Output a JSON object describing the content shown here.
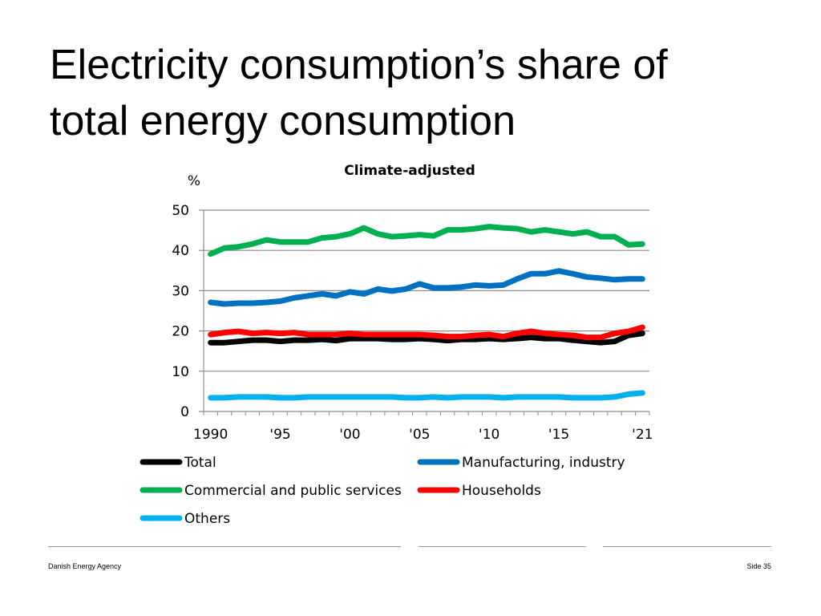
{
  "slide": {
    "title_line1": "Electricity consumption’s share of",
    "title_line2": "total energy consumption",
    "footer_left": "Danish Energy Agency",
    "footer_right": "Side 35"
  },
  "chart_data": {
    "type": "line",
    "title": "Climate-adjusted",
    "ylabel": "%",
    "xlabel": "",
    "ylim": [
      0,
      50
    ],
    "xlim": [
      1989.5,
      2021.5
    ],
    "yticks": [
      0,
      10,
      20,
      30,
      40,
      50
    ],
    "xticks": [
      {
        "value": 1990,
        "label": "1990"
      },
      {
        "value": 1995,
        "label": "'95"
      },
      {
        "value": 2000,
        "label": "'00"
      },
      {
        "value": 2005,
        "label": "'05"
      },
      {
        "value": 2010,
        "label": "'10"
      },
      {
        "value": 2015,
        "label": "'15"
      },
      {
        "value": 2021,
        "label": "'21"
      }
    ],
    "x": [
      1990,
      1991,
      1992,
      1993,
      1994,
      1995,
      1996,
      1997,
      1998,
      1999,
      2000,
      2001,
      2002,
      2003,
      2004,
      2005,
      2006,
      2007,
      2008,
      2009,
      2010,
      2011,
      2012,
      2013,
      2014,
      2015,
      2016,
      2017,
      2018,
      2019,
      2020,
      2021
    ],
    "series": [
      {
        "name": "Total",
        "color": "#000000",
        "values": [
          17.1,
          17.1,
          17.4,
          17.7,
          17.7,
          17.4,
          17.7,
          17.7,
          17.9,
          17.6,
          18.1,
          18.1,
          18.1,
          17.9,
          17.9,
          18.1,
          17.9,
          17.6,
          17.9,
          17.9,
          18.1,
          17.9,
          18.1,
          18.4,
          18.1,
          18.1,
          17.7,
          17.4,
          17.1,
          17.4,
          18.9,
          19.4
        ]
      },
      {
        "name": "Manufacturing, industry",
        "color": "#0070C0",
        "values": [
          27.1,
          26.7,
          26.9,
          26.9,
          27.1,
          27.4,
          28.2,
          28.7,
          29.2,
          28.7,
          29.7,
          29.2,
          30.4,
          29.9,
          30.4,
          31.7,
          30.7,
          30.7,
          30.9,
          31.4,
          31.2,
          31.4,
          32.9,
          34.2,
          34.2,
          34.9,
          34.2,
          33.4,
          33.1,
          32.7,
          32.9,
          32.9
        ]
      },
      {
        "name": "Commercial and public services",
        "color": "#00B050",
        "values": [
          39.1,
          40.6,
          40.9,
          41.6,
          42.6,
          42.1,
          42.1,
          42.1,
          43.1,
          43.4,
          44.1,
          45.6,
          44.1,
          43.4,
          43.6,
          43.9,
          43.6,
          45.1,
          45.1,
          45.4,
          45.9,
          45.6,
          45.4,
          44.6,
          45.1,
          44.6,
          44.1,
          44.6,
          43.4,
          43.4,
          41.4,
          41.6
        ]
      },
      {
        "name": "Households",
        "color": "#FF0000",
        "values": [
          19.1,
          19.6,
          19.9,
          19.4,
          19.6,
          19.4,
          19.6,
          19.1,
          19.1,
          19.1,
          19.4,
          19.1,
          19.1,
          19.1,
          19.1,
          19.1,
          18.9,
          18.6,
          18.6,
          18.9,
          19.1,
          18.6,
          19.4,
          19.9,
          19.4,
          19.1,
          18.9,
          18.4,
          18.4,
          19.4,
          19.9,
          20.9
        ]
      },
      {
        "name": "Others",
        "color": "#00B0F0",
        "values": [
          3.4,
          3.4,
          3.6,
          3.6,
          3.6,
          3.4,
          3.4,
          3.6,
          3.6,
          3.6,
          3.6,
          3.6,
          3.6,
          3.6,
          3.4,
          3.4,
          3.6,
          3.4,
          3.6,
          3.6,
          3.6,
          3.4,
          3.6,
          3.6,
          3.6,
          3.6,
          3.4,
          3.4,
          3.4,
          3.6,
          4.3,
          4.6
        ]
      }
    ],
    "legend_layout": [
      [
        "Total",
        "Manufacturing, industry"
      ],
      [
        "Commercial and public services",
        "Households"
      ],
      [
        "Others"
      ]
    ],
    "grid": true
  }
}
